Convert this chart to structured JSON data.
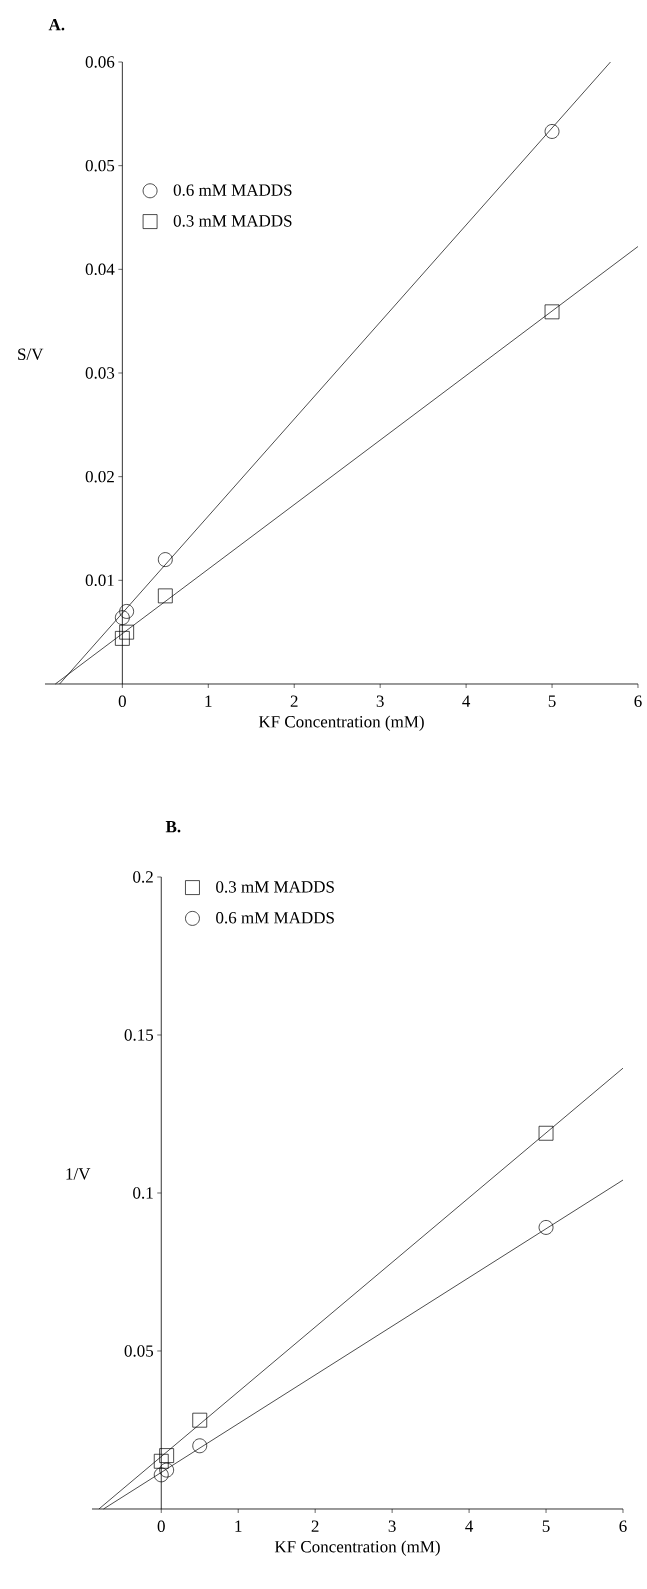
{
  "chart_data": [
    {
      "type": "scatter",
      "title": "A.",
      "xlabel": "KF Concentration (mM)",
      "ylabel": "S/V",
      "xlim": [
        -0.9,
        6
      ],
      "ylim": [
        0,
        0.06
      ],
      "xticks": [
        0,
        1,
        2,
        3,
        4,
        5,
        6
      ],
      "yticks": [
        0.01,
        0.02,
        0.03,
        0.04,
        0.05,
        0.06
      ],
      "legend": "top left",
      "grid": false,
      "series": [
        {
          "name": "0.6 mM MADDS",
          "color": "#000000",
          "marker": "circle",
          "x": [
            0,
            0.05,
            0.5,
            5
          ],
          "values": [
            0.0064,
            0.007,
            0.012,
            0.0533
          ]
        },
        {
          "name": "0.3 mM MADDS",
          "color": "#000000",
          "marker": "square",
          "x": [
            0,
            0.05,
            0.5,
            5
          ],
          "values": [
            0.0044,
            0.005,
            0.0085,
            0.0359
          ]
        },
        {
          "type": "line",
          "color": "#000000",
          "marker": "none",
          "x": [
            -0.73,
            5.68
          ],
          "values": [
            0,
            0.06
          ]
        },
        {
          "type": "line",
          "color": "#000000",
          "marker": "none",
          "x": [
            -0.78,
            6
          ],
          "values": [
            0,
            0.0422
          ]
        }
      ]
    },
    {
      "type": "scatter",
      "title": "B.",
      "xlabel": "KF Concentration (mM)",
      "ylabel": "1/V",
      "xlim": [
        -0.9,
        6
      ],
      "ylim": [
        0,
        0.2
      ],
      "xticks": [
        0,
        1,
        2,
        3,
        4,
        5,
        6
      ],
      "yticks": [
        0.05,
        0.1,
        0.15,
        0.2
      ],
      "legend": "top left",
      "grid": false,
      "series": [
        {
          "name": "0.3 mM MADDS",
          "color": "#000000",
          "marker": "square",
          "x": [
            0,
            0.07,
            0.5,
            5
          ],
          "values": [
            0.0151,
            0.0169,
            0.0281,
            0.1189
          ]
        },
        {
          "name": "0.6 mM MADDS",
          "color": "#000000",
          "marker": "circle",
          "x": [
            0,
            0.07,
            0.5,
            5
          ],
          "values": [
            0.0108,
            0.0123,
            0.02,
            0.0891
          ]
        },
        {
          "type": "line",
          "color": "#000000",
          "marker": "none",
          "x": [
            -0.81,
            6
          ],
          "values": [
            0,
            0.1395
          ]
        },
        {
          "type": "line",
          "color": "#000000",
          "marker": "none",
          "x": [
            -0.75,
            6
          ],
          "values": [
            0,
            0.1041
          ]
        }
      ]
    }
  ]
}
